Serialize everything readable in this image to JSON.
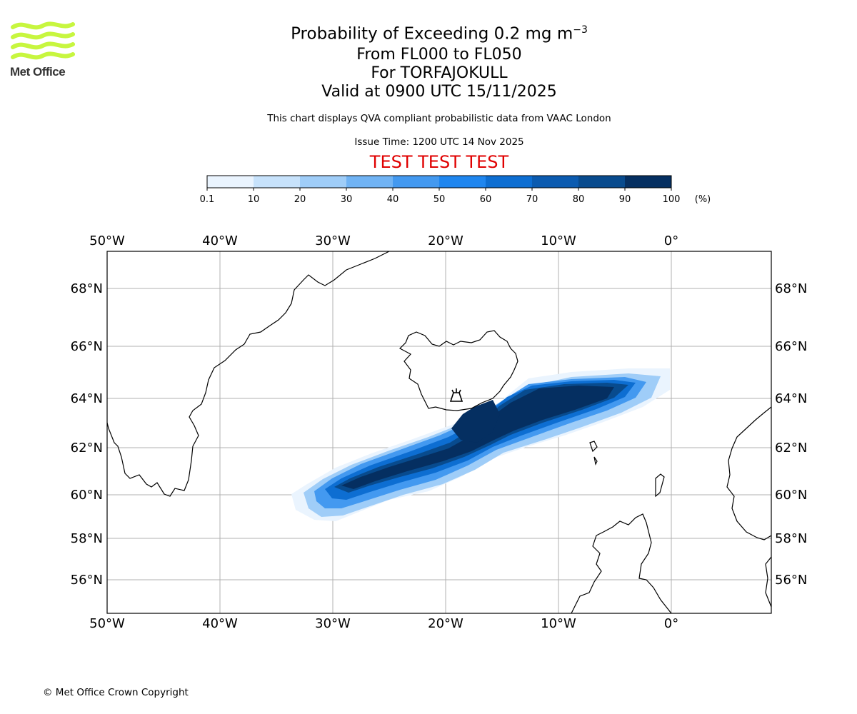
{
  "logo": {
    "text": "Met Office",
    "color": "#c7f63f",
    "icon": "met-office-wave-logo-icon"
  },
  "header": {
    "title_prefix": "Probability of Exceeding 0.2 mg m",
    "title_exponent": "−3",
    "flight_levels": "From FL000 to FL050",
    "volcano": "For TORFAJOKULL",
    "valid_time": "Valid at 0900 UTC 15/11/2025",
    "description": "This chart displays QVA compliant probabilistic data from VAAC London",
    "issue_time": "Issue Time: 1200 UTC 14 Nov 2025",
    "test_banner": "TEST TEST TEST"
  },
  "colorbar": {
    "unit": "(%)",
    "ticks": [
      "0.1",
      "10",
      "20",
      "30",
      "40",
      "50",
      "60",
      "70",
      "80",
      "90",
      "100"
    ],
    "colors": [
      "#eaf4fe",
      "#c7e2fb",
      "#9fcdf8",
      "#70b3f4",
      "#4399f0",
      "#1f86ef",
      "#0d6ed2",
      "#0b5bb0",
      "#084b8e",
      "#052f61"
    ]
  },
  "map": {
    "lon_labels": [
      "50°W",
      "40°W",
      "30°W",
      "20°W",
      "10°W",
      "0°"
    ],
    "lat_labels": [
      "68°N",
      "66°N",
      "64°N",
      "62°N",
      "60°N",
      "58°N",
      "56°N"
    ],
    "volcano_marker": "volcano-icon",
    "plume_description": "ash probability plume"
  },
  "footer": {
    "copyright": "© Met Office Crown Copyright"
  }
}
